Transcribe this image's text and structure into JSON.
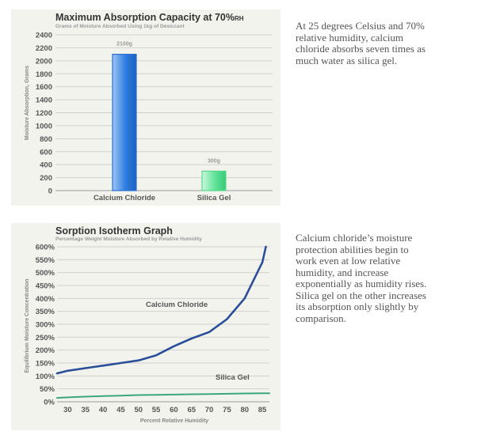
{
  "chart_data": [
    {
      "type": "bar",
      "title": "Maximum Absorption Capacity at 70%",
      "title_suffix": "RH",
      "subtitle": "Grams of Moisture Absorbed Using 1kg of Desiccant",
      "ylabel": "Moisture Absorption, Grams",
      "xlabel": "",
      "ylim": [
        0,
        2400
      ],
      "yticks": [
        0,
        200,
        400,
        600,
        800,
        1000,
        1200,
        1400,
        1600,
        1800,
        2000,
        2200,
        2400
      ],
      "ytick_labels": [
        "0",
        "200",
        "400",
        "600",
        "800",
        "1000",
        "1200",
        "1400",
        "1600",
        "1800",
        "2000",
        "2200",
        "2400"
      ],
      "categories": [
        "Calcium Chloride",
        "Silica Gel"
      ],
      "values": [
        2100,
        300
      ],
      "data_labels": [
        "2100g",
        "300g"
      ],
      "colors": [
        "#2a6fd0",
        "#54d98a"
      ],
      "grid": true
    },
    {
      "type": "line",
      "title": "Sorption Isotherm Graph",
      "subtitle": "Percentage Weight Moisture Absorbed by Relative Humidity",
      "xlabel": "Percent Relative Humidity",
      "ylabel": "Equilibrium Moisture Concentration",
      "xlim": [
        27,
        87
      ],
      "ylim": [
        0,
        600
      ],
      "xticks": [
        30,
        35,
        40,
        45,
        50,
        55,
        60,
        65,
        70,
        75,
        80,
        85
      ],
      "xtick_labels": [
        "30",
        "35",
        "40",
        "45",
        "50",
        "55",
        "60",
        "65",
        "70",
        "75",
        "80",
        "85"
      ],
      "yticks": [
        0,
        50,
        100,
        150,
        200,
        250,
        300,
        350,
        400,
        450,
        500,
        550,
        600
      ],
      "ytick_labels": [
        "0%",
        "50%",
        "100%",
        "150%",
        "200%",
        "250%",
        "300%",
        "350%",
        "400%",
        "450%",
        "500%",
        "550%",
        "600%"
      ],
      "grid": true,
      "series": [
        {
          "name": "Calcium Chloride",
          "color": "#2a4f9a",
          "x": [
            27,
            30,
            35,
            40,
            45,
            50,
            55,
            60,
            65,
            70,
            75,
            80,
            85,
            86
          ],
          "y": [
            110,
            120,
            130,
            140,
            150,
            160,
            180,
            215,
            245,
            270,
            320,
            400,
            540,
            600
          ]
        },
        {
          "name": "Silica Gel",
          "color": "#3aa67a",
          "x": [
            27,
            30,
            35,
            40,
            45,
            50,
            55,
            60,
            65,
            70,
            75,
            80,
            85,
            87
          ],
          "y": [
            15,
            17,
            20,
            22,
            24,
            26,
            27,
            28,
            29,
            30,
            31,
            32,
            33,
            33
          ]
        }
      ]
    }
  ],
  "captions": {
    "top": "At 25 degrees Celsius and 70% relative humidity, calcium chloride absorbs seven times as much water as silica gel.",
    "bottom": "Calcium chloride’s moisture protection abilities begin to work even at low relative humidity, and increase exponentially as humidity rises.  Silica gel on the other increases its absorption only slightly by comparison."
  }
}
